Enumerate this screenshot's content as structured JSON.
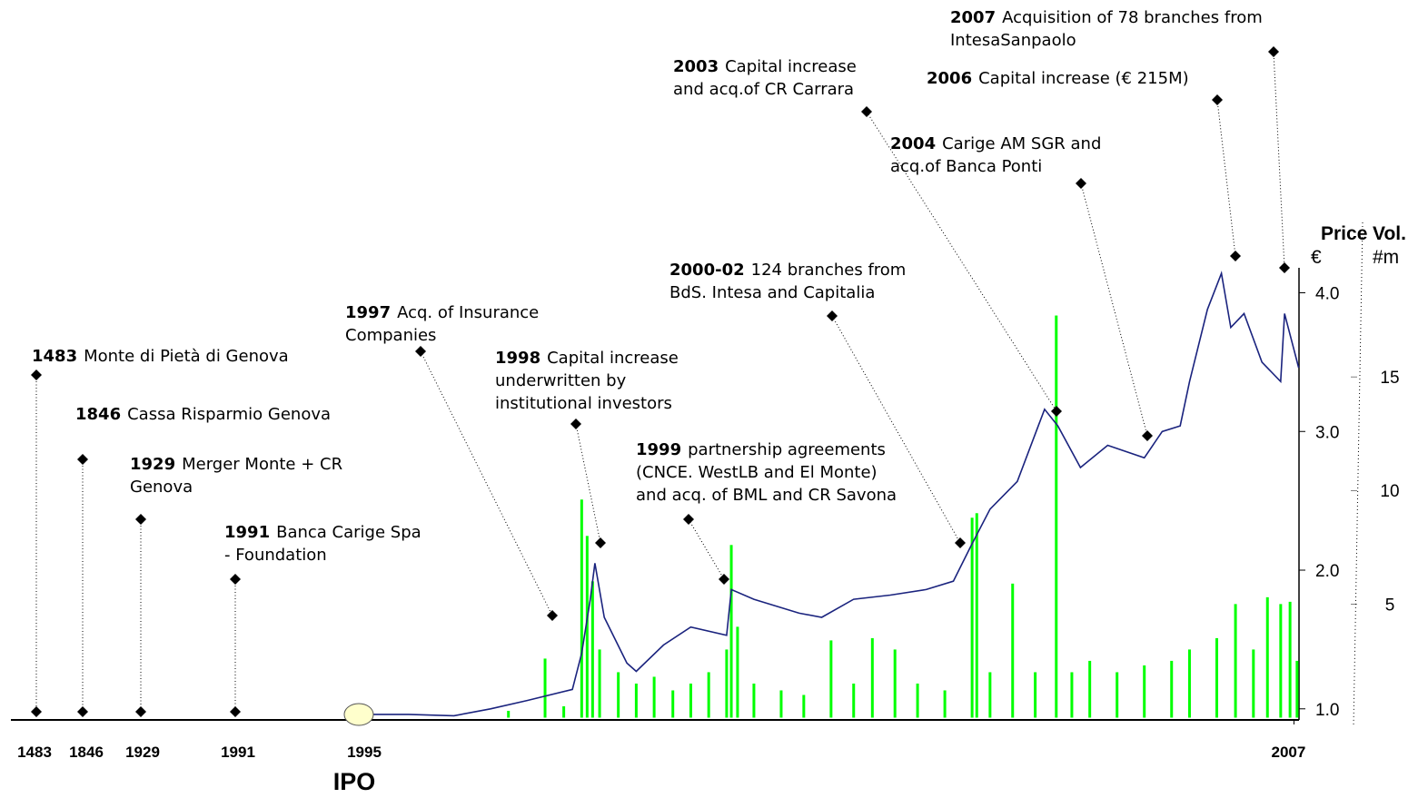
{
  "chart_data": {
    "type": "line",
    "xlim": [
      1995,
      2007.1
    ],
    "xticks": [
      1995,
      2007
    ],
    "ylim": [
      0.92,
      4.18
    ],
    "yticks": [
      {
        "value": 1,
        "label": "1.0"
      },
      {
        "value": 2,
        "label": "2.0"
      },
      {
        "value": 3,
        "label": "3.0"
      },
      {
        "value": 4,
        "label": "4.0"
      }
    ],
    "y2lim": [
      -0.1,
      19.8
    ],
    "y2ticks": [
      5,
      10,
      15
    ],
    "y_label": {
      "title": "Price",
      "unit": "€"
    },
    "y2_label": {
      "title": "Vol.",
      "unit": "#m"
    },
    "ipo_label": "IPO",
    "series": [
      {
        "type": "line",
        "color": "#1a237e",
        "x": [
          1995.17,
          1995.64,
          1996.22,
          1996.69,
          1997.16,
          1997.74,
          1997.86,
          1997.97,
          1998.03,
          1998.15,
          1998.44,
          1998.56,
          1998.91,
          1999.26,
          1999.72,
          1999.78,
          2000.07,
          2000.65,
          2000.94,
          2001.35,
          2001.82,
          2002.28,
          2002.63,
          2002.86,
          2003.1,
          2003.45,
          2003.8,
          2003.97,
          2004.26,
          2004.61,
          2005.08,
          2005.31,
          2005.54,
          2005.66,
          2005.89,
          2006.07,
          2006.19,
          2006.36,
          2006.59,
          2006.83,
          2006.88,
          2007.06
        ],
        "values": [
          0.96,
          0.96,
          0.95,
          1.0,
          1.06,
          1.14,
          1.4,
          1.79,
          2.05,
          1.66,
          1.33,
          1.27,
          1.46,
          1.59,
          1.53,
          1.86,
          1.79,
          1.69,
          1.66,
          1.79,
          1.82,
          1.86,
          1.92,
          2.18,
          2.44,
          2.64,
          3.16,
          3.04,
          2.74,
          2.9,
          2.81,
          3.0,
          3.04,
          3.36,
          3.88,
          4.14,
          3.75,
          3.85,
          3.5,
          3.36,
          3.85,
          3.46
        ]
      },
      {
        "type": "bar",
        "axis": "y2",
        "color": "#00ff00",
        "x": [
          1996.92,
          1997.39,
          1997.63,
          1997.86,
          1997.93,
          1998.0,
          1998.09,
          1998.33,
          1998.56,
          1998.79,
          1999.03,
          1999.26,
          1999.49,
          1999.72,
          1999.78,
          1999.86,
          2000.07,
          2000.42,
          2000.71,
          2001.06,
          2001.35,
          2001.59,
          2001.88,
          2002.17,
          2002.52,
          2002.87,
          2002.93,
          2003.1,
          2003.39,
          2003.68,
          2003.95,
          2004.15,
          2004.38,
          2004.73,
          2005.08,
          2005.43,
          2005.66,
          2006.01,
          2006.25,
          2006.48,
          2006.66,
          2006.83,
          2006.95,
          2007.04
        ],
        "values": [
          0.3,
          2.6,
          0.5,
          9.6,
          8.0,
          6,
          3,
          2,
          1.5,
          1.8,
          1.2,
          1.5,
          2,
          3,
          7.6,
          4,
          1.5,
          1.2,
          1,
          3.4,
          1.5,
          3.5,
          3,
          1.5,
          1.2,
          8.8,
          9,
          2,
          5.9,
          2,
          17.7,
          2,
          2.5,
          2,
          2.3,
          2.5,
          3,
          3.5,
          5,
          3,
          5.3,
          5,
          5.1,
          2.5
        ]
      }
    ],
    "milestones": [
      {
        "year": "1483",
        "lines": [
          "Monte di Pietà di Genova"
        ]
      },
      {
        "year": "1846",
        "lines": [
          "Cassa Risparmio Genova"
        ]
      },
      {
        "year": "1929",
        "lines": [
          "Merger Monte + CR",
          "Genova"
        ]
      },
      {
        "year": "1991",
        "lines": [
          "Banca Carige Spa",
          "- Foundation"
        ]
      }
    ],
    "events": [
      {
        "year": "1997",
        "lines": [
          "Acq. of Insurance",
          "Companies"
        ]
      },
      {
        "year": "1998",
        "lines": [
          "Capital increase",
          "underwritten by",
          "institutional investors"
        ]
      },
      {
        "year": "1999",
        "lines": [
          "partnership agreements",
          "(CNCE. WestLB and El Monte)",
          "and acq. of BML  and CR Savona"
        ]
      },
      {
        "year": "2000-02",
        "lines": [
          "124 branches from",
          "BdS. Intesa and Capitalia"
        ]
      },
      {
        "year": "2003",
        "lines": [
          "Capital increase",
          "and acq.of CR Carrara"
        ]
      },
      {
        "year": "2004",
        "lines": [
          "Carige AM  SGR and",
          "acq.of Banca Ponti"
        ]
      },
      {
        "year": "2006",
        "lines": [
          "Capital increase (€ 215M)"
        ]
      },
      {
        "year": "2007",
        "lines": [
          "Acquisition of 78 branches from",
          "IntesaSanpaolo"
        ]
      }
    ]
  }
}
